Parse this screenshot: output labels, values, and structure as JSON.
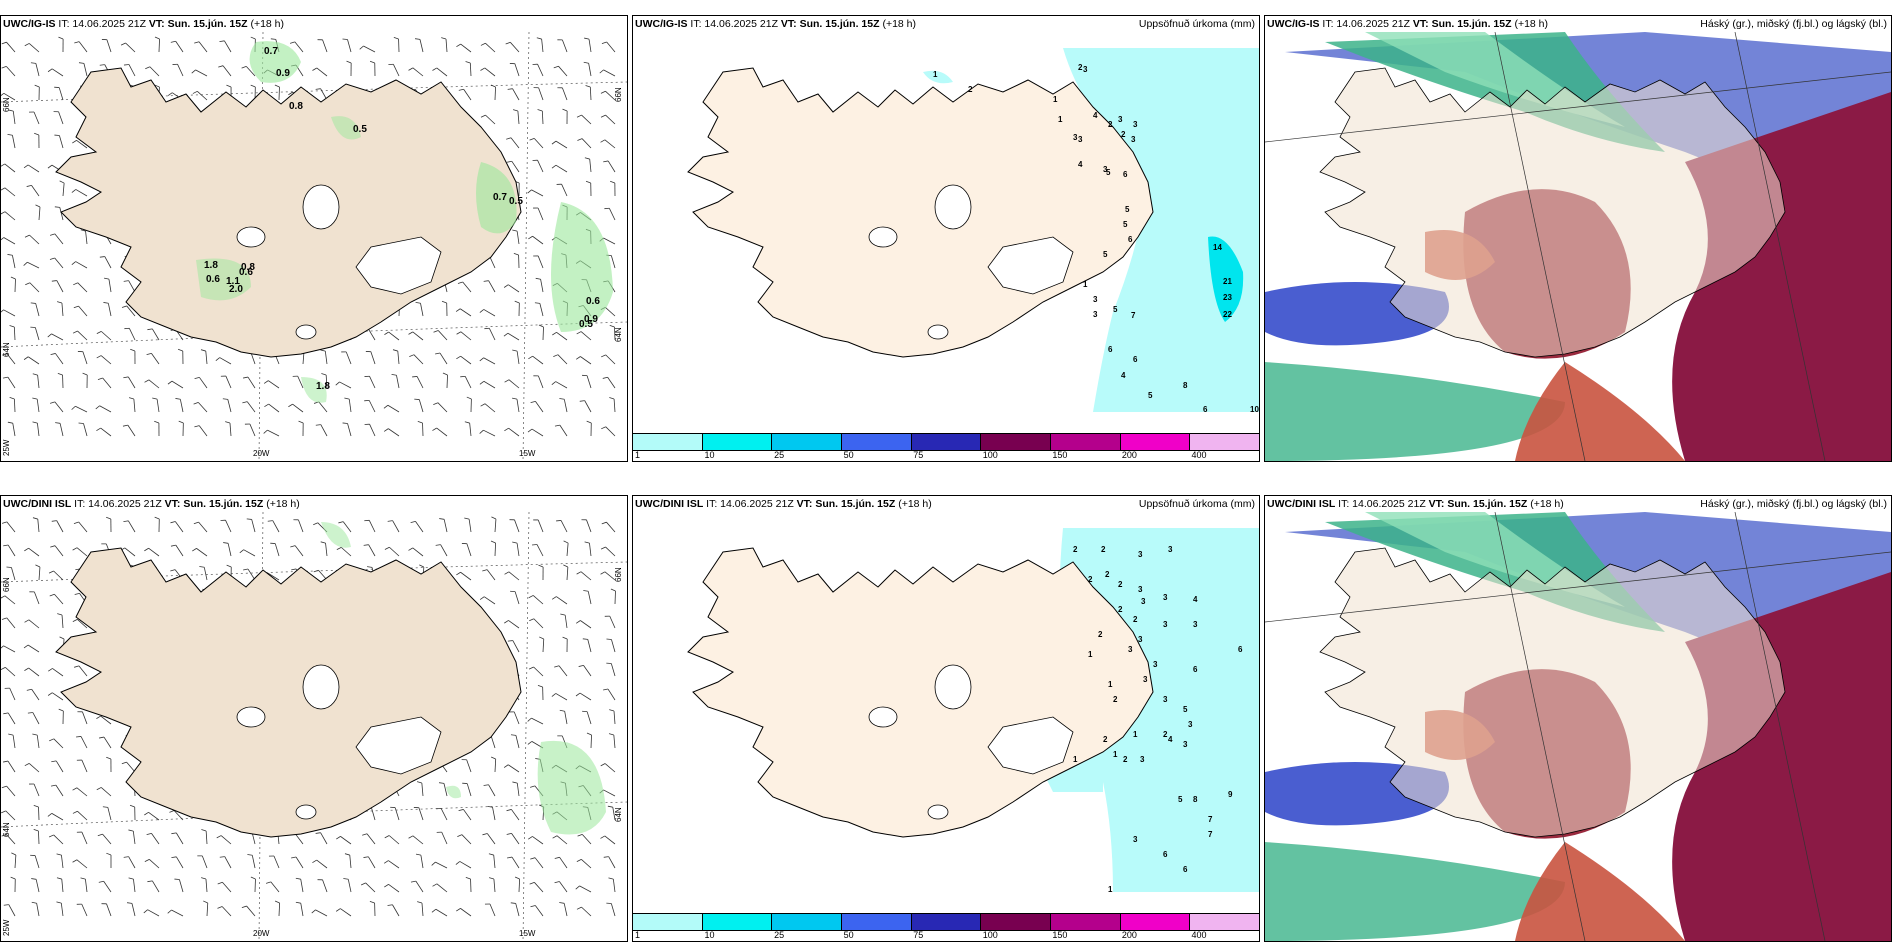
{
  "panels": [
    {
      "model": "UWC/IG-IS",
      "it": "IT: 14.06.2025 21Z",
      "vt": "VT: Sun. 15.jún. 15Z",
      "lead": "(+18 h)",
      "right": "",
      "kind": "wind",
      "axes": {
        "lat_top": "66N",
        "lat_bot": "64N",
        "lon1": "20W",
        "lon2": "15W",
        "lon_left": "25W"
      },
      "values": [
        "0.7",
        "0.9",
        "0.8",
        "0.5",
        "0.7",
        "0.5",
        "1.8",
        "0.6",
        "0.8",
        "0.6",
        "1.1",
        "2.0",
        "0.6",
        "0.9",
        "0.5",
        "1.8"
      ]
    },
    {
      "model": "UWC/IG-IS",
      "it": "IT: 14.06.2025 21Z",
      "vt": "VT: Sun. 15.jún. 15Z",
      "lead": "(+18 h)",
      "right": "Uppsöfnuð úrkoma (mm)",
      "kind": "precip",
      "values": [
        "1",
        "2",
        "2",
        "3",
        "3",
        "3",
        "3",
        "1",
        "1",
        "3",
        "4",
        "4",
        "2",
        "3",
        "2",
        "3",
        "5",
        "6",
        "5",
        "5",
        "6",
        "5",
        "14",
        "21",
        "23",
        "22",
        "3",
        "5",
        "7",
        "6",
        "6",
        "4",
        "8",
        "5",
        "10",
        "6",
        "1",
        "3"
      ]
    },
    {
      "model": "UWC/IG-IS",
      "it": "IT: 14.06.2025 21Z",
      "vt": "VT: Sun. 15.jún. 15Z",
      "lead": "(+18 h)",
      "right": "Háský (gr.), miðský (fj.bl.) og lágský (bl.)",
      "kind": "cloud"
    },
    {
      "model": "UWC/DINI ISL",
      "it": "IT: 14.06.2025 21Z",
      "vt": "VT: Sun. 15.jún. 15Z",
      "lead": "(+18 h)",
      "right": "",
      "kind": "wind",
      "axes": {
        "lat_top": "66N",
        "lat_bot": "64N",
        "lon1": "20W",
        "lon2": "15W",
        "lon_left": "25W"
      },
      "values": []
    },
    {
      "model": "UWC/DINI ISL",
      "it": "IT: 14.06.2025 21Z",
      "vt": "VT: Sun. 15.jún. 15Z",
      "lead": "(+18 h)",
      "right": "Uppsöfnuð úrkoma (mm)",
      "kind": "precip",
      "values": [
        "2",
        "2",
        "3",
        "3",
        "2",
        "2",
        "1",
        "2",
        "3",
        "3",
        "3",
        "4",
        "2",
        "2",
        "3",
        "3",
        "2",
        "3",
        "3",
        "6",
        "3",
        "1",
        "3",
        "6",
        "2",
        "3",
        "5",
        "3",
        "2",
        "1",
        "2",
        "1",
        "2",
        "3",
        "4",
        "3",
        "1",
        "5",
        "8",
        "9",
        "7",
        "3",
        "6",
        "6",
        "7",
        "1"
      ]
    },
    {
      "model": "UWC/DINI ISL",
      "it": "IT: 14.06.2025 21Z",
      "vt": "VT: Sun. 15.jún. 15Z",
      "lead": "(+18 h)",
      "right": "Háský (gr.), miðský (fj.bl.) og lágský (bl.)",
      "kind": "cloud"
    }
  ],
  "legend": {
    "ticks": [
      "1",
      "10",
      "25",
      "50",
      "75",
      "100",
      "150",
      "200",
      "400"
    ],
    "colors": [
      "#b3fbf9",
      "#00f0f0",
      "#00c8f0",
      "#3c64f0",
      "#2828b4",
      "#780050",
      "#b4008c",
      "#f000c8",
      "#f0b4f0"
    ]
  }
}
